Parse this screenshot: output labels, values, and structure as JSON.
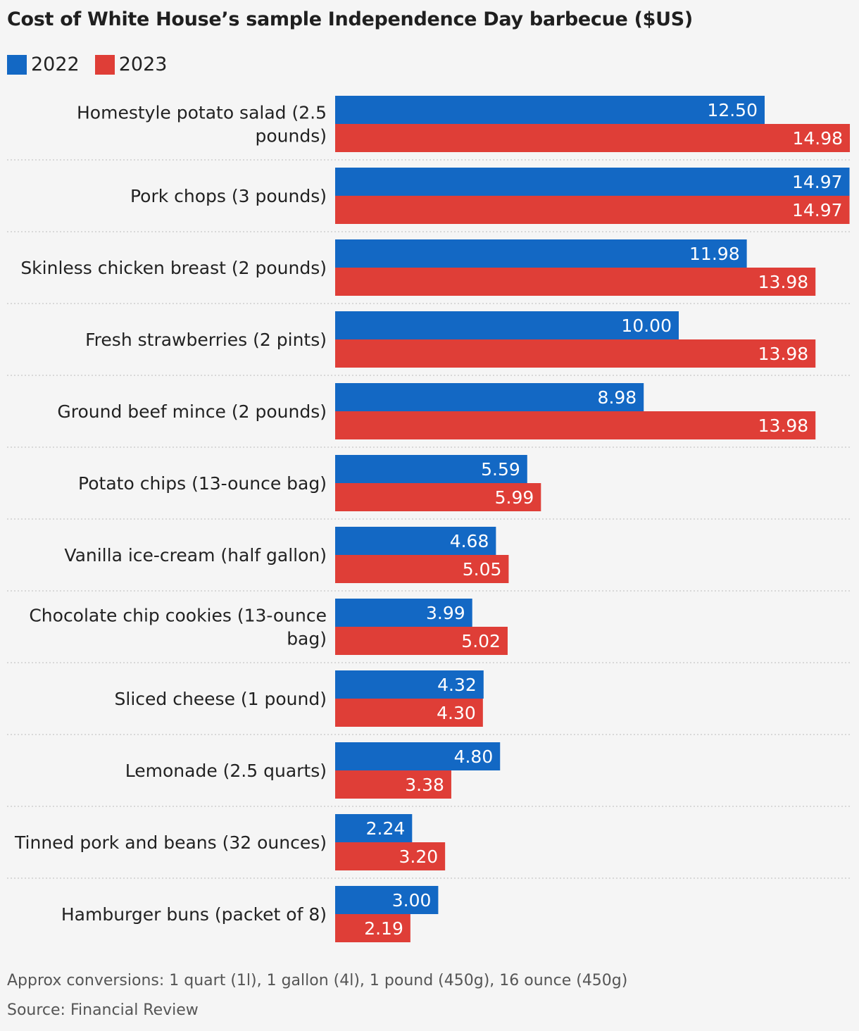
{
  "title": "Cost of White House’s sample Independence Day barbecue ($US)",
  "notes": {
    "conversions": "Approx conversions: 1 quart (1l), 1 gallon (4l), 1 pound (450g), 16 ounce (450g)",
    "source": "Source: Financial Review"
  },
  "colors": {
    "2022": "#1368c4",
    "2023": "#df3e37",
    "background": "#f5f5f5",
    "separator": "#c8c8c8"
  },
  "chart_data": {
    "type": "bar",
    "orientation": "horizontal",
    "title": "Cost of White House’s sample Independence Day barbecue ($US)",
    "xlabel": "",
    "ylabel": "",
    "xlim": [
      0,
      15
    ],
    "grid": false,
    "legend_position": "top-left",
    "categories": [
      [
        "Homestyle potato salad (2.5",
        "pounds)"
      ],
      [
        "Pork chops (3 pounds)"
      ],
      [
        "Skinless chicken breast (2 pounds)"
      ],
      [
        "Fresh strawberries (2 pints)"
      ],
      [
        "Ground beef mince (2 pounds)"
      ],
      [
        "Potato chips (13-ounce bag)"
      ],
      [
        "Vanilla ice-cream (half gallon)"
      ],
      [
        "Chocolate chip cookies (13-ounce",
        "bag)"
      ],
      [
        "Sliced cheese (1 pound)"
      ],
      [
        "Lemonade (2.5 quarts)"
      ],
      [
        "Tinned pork and beans (32 ounces)"
      ],
      [
        "Hamburger buns (packet of 8)"
      ]
    ],
    "series": [
      {
        "name": "2022",
        "color": "#1368c4",
        "values": [
          12.5,
          14.97,
          11.98,
          10.0,
          8.98,
          5.59,
          4.68,
          3.99,
          4.32,
          4.8,
          2.24,
          3.0
        ],
        "labels": [
          "12.50",
          "14.97",
          "11.98",
          "10.00",
          "8.98",
          "5.59",
          "4.68",
          "3.99",
          "4.32",
          "4.80",
          "2.24",
          "3.00"
        ]
      },
      {
        "name": "2023",
        "color": "#df3e37",
        "values": [
          14.98,
          14.97,
          13.98,
          13.98,
          13.98,
          5.99,
          5.05,
          5.02,
          4.3,
          3.38,
          3.2,
          2.19
        ],
        "labels": [
          "14.98",
          "14.97",
          "13.98",
          "13.98",
          "13.98",
          "5.99",
          "5.05",
          "5.02",
          "4.30",
          "3.38",
          "3.20",
          "2.19"
        ]
      }
    ]
  }
}
